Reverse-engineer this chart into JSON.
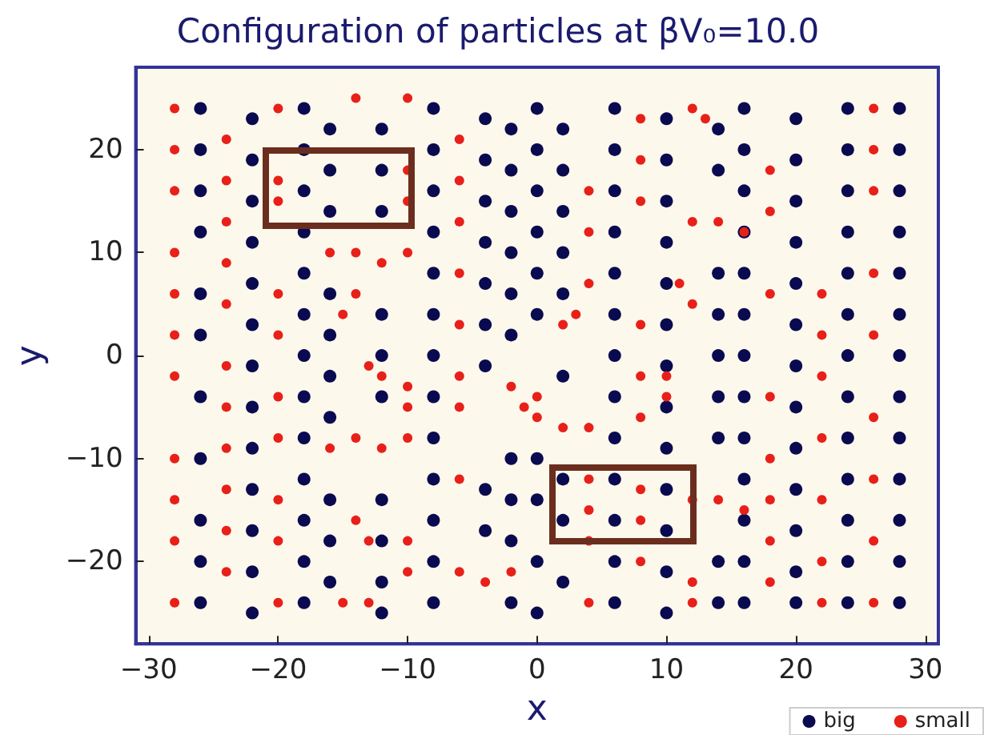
{
  "chart_data": {
    "type": "scatter",
    "title": "Configuration of particles at βV₀=10.0",
    "xlabel": "x",
    "ylabel": "y",
    "xlim": [
      -31,
      31
    ],
    "xticks": [
      -30,
      -20,
      -10,
      0,
      10,
      20,
      30
    ],
    "ylim": [
      -28,
      28
    ],
    "yticks": [
      -20,
      -10,
      0,
      10,
      20
    ],
    "grid": false,
    "legend": "bottom right",
    "marker": "circle",
    "series": [
      {
        "name": "big",
        "color": "#0a0a50",
        "x": [
          -26,
          -26,
          -26,
          -26,
          -26,
          -26,
          -26,
          -26,
          -26,
          -26,
          -26,
          -22,
          -22,
          -22,
          -22,
          -22,
          -22,
          -22,
          -22,
          -22,
          -22,
          -22,
          -22,
          -22,
          -18,
          -18,
          -18,
          -18,
          -18,
          -18,
          -18,
          -18,
          -18,
          -18,
          -18,
          -18,
          -18,
          -16,
          -16,
          -16,
          -16,
          -16,
          -16,
          -16,
          -16,
          -16,
          -16,
          -12,
          -12,
          -12,
          -12,
          -12,
          -12,
          -12,
          -12,
          -12,
          -12,
          -8,
          -8,
          -8,
          -8,
          -8,
          -8,
          -8,
          -8,
          -8,
          -8,
          -8,
          -8,
          -8,
          -4,
          -4,
          -4,
          -4,
          -4,
          -4,
          -4,
          -4,
          -4,
          -2,
          -2,
          -2,
          -2,
          -2,
          -2,
          -2,
          -2,
          -2,
          -2,
          0,
          0,
          0,
          0,
          0,
          0,
          0,
          0,
          0,
          0,
          2,
          2,
          2,
          2,
          2,
          2,
          2,
          2,
          2,
          6,
          6,
          6,
          6,
          6,
          6,
          6,
          6,
          6,
          6,
          6,
          6,
          6,
          10,
          10,
          10,
          10,
          10,
          10,
          10,
          10,
          10,
          10,
          10,
          10,
          10,
          14,
          14,
          14,
          14,
          14,
          14,
          14,
          14,
          14,
          16,
          16,
          16,
          16,
          16,
          16,
          16,
          16,
          16,
          16,
          16,
          16,
          16,
          20,
          20,
          20,
          20,
          20,
          20,
          20,
          20,
          20,
          20,
          20,
          20,
          20,
          24,
          24,
          24,
          24,
          24,
          24,
          24,
          24,
          24,
          24,
          24,
          24,
          24,
          28,
          28,
          28,
          28,
          28,
          28,
          28,
          28,
          28,
          28,
          28,
          28,
          28
        ],
        "values": [
          24,
          20,
          16,
          12,
          6,
          2,
          -4,
          -10,
          -16,
          -20,
          -24,
          23,
          19,
          15,
          11,
          7,
          3,
          -1,
          -5,
          -9,
          -13,
          -17,
          -21,
          -25,
          24,
          20,
          16,
          12,
          8,
          4,
          0,
          -4,
          -8,
          -12,
          -16,
          -20,
          -24,
          22,
          18,
          14,
          6,
          2,
          -2,
          -6,
          -14,
          -18,
          -22,
          22,
          18,
          14,
          4,
          0,
          -4,
          -14,
          -18,
          -22,
          -25,
          24,
          20,
          16,
          12,
          8,
          4,
          0,
          -4,
          -8,
          -12,
          -16,
          -20,
          -24,
          23,
          19,
          15,
          11,
          7,
          3,
          -1,
          -13,
          -17,
          22,
          18,
          14,
          10,
          6,
          2,
          -10,
          -14,
          -18,
          -24,
          24,
          20,
          16,
          12,
          8,
          4,
          -10,
          -14,
          -20,
          -25,
          22,
          18,
          14,
          10,
          6,
          -2,
          -12,
          -16,
          -22,
          24,
          20,
          16,
          12,
          8,
          4,
          0,
          -4,
          -8,
          -12,
          -16,
          -20,
          -24,
          23,
          19,
          15,
          11,
          7,
          3,
          -1,
          -5,
          -9,
          -13,
          -17,
          -21,
          -25,
          22,
          18,
          8,
          4,
          0,
          -4,
          -8,
          -20,
          -24,
          24,
          20,
          16,
          12,
          8,
          4,
          0,
          -4,
          -8,
          -12,
          -16,
          -20,
          -24,
          23,
          19,
          15,
          11,
          7,
          3,
          -1,
          -5,
          -9,
          -13,
          -17,
          -21,
          -24,
          24,
          20,
          16,
          12,
          8,
          4,
          0,
          -4,
          -8,
          -12,
          -16,
          -20,
          -24,
          24,
          20,
          16,
          12,
          8,
          4,
          0,
          -4,
          -8,
          -12,
          -16,
          -20,
          -24
        ]
      },
      {
        "name": "small",
        "color": "#e8201a",
        "x": [
          -28,
          -28,
          -28,
          -28,
          -28,
          -28,
          -28,
          -28,
          -28,
          -28,
          -28,
          -24,
          -24,
          -24,
          -24,
          -24,
          -24,
          -24,
          -24,
          -24,
          -24,
          -24,
          -20,
          -20,
          -20,
          -20,
          -20,
          -20,
          -20,
          -20,
          -20,
          -20,
          -14,
          -16,
          -14,
          -12,
          -10,
          -15,
          -14,
          -13,
          -12,
          -16,
          -14,
          -12,
          -10,
          -14,
          -13,
          -15,
          -13,
          -10,
          -10,
          -10,
          -10,
          -10,
          -10,
          -10,
          -6,
          -6,
          -6,
          -6,
          -6,
          -6,
          -6,
          -6,
          -6,
          -4,
          -2,
          -2,
          -1,
          0,
          2,
          4,
          0,
          2,
          3,
          4,
          4,
          4,
          4,
          4,
          4,
          4,
          8,
          8,
          8,
          8,
          8,
          8,
          8,
          8,
          8,
          12,
          13,
          12,
          14,
          16,
          11,
          12,
          10,
          10,
          12,
          14,
          16,
          12,
          12,
          18,
          18,
          18,
          18,
          18,
          18,
          18,
          18,
          22,
          22,
          22,
          22,
          22,
          22,
          22,
          26,
          26,
          26,
          26,
          26,
          26,
          26,
          26,
          26
        ],
        "values": [
          24,
          20,
          16,
          10,
          6,
          2,
          -2,
          -10,
          -14,
          -18,
          -24,
          21,
          17,
          13,
          9,
          5,
          -1,
          -5,
          -9,
          -13,
          -17,
          -21,
          24,
          17,
          15,
          6,
          2,
          -4,
          -8,
          -14,
          -18,
          -24,
          25,
          10,
          10,
          9,
          10,
          4,
          6,
          -1,
          -2,
          -9,
          -8,
          -9,
          -8,
          -16,
          -18,
          -24,
          -24,
          25,
          18,
          15,
          -3,
          -5,
          -18,
          -21,
          21,
          17,
          13,
          8,
          3,
          -2,
          -5,
          -12,
          -21,
          -22,
          -21,
          -3,
          -5,
          -6,
          -7,
          -7,
          -4,
          3,
          4,
          16,
          12,
          7,
          -12,
          -15,
          -18,
          -24,
          23,
          19,
          15,
          3,
          -2,
          -6,
          -13,
          -16,
          -20,
          24,
          23,
          13,
          13,
          12,
          7,
          5,
          -2,
          -4,
          -14,
          -14,
          -15,
          -22,
          -24,
          18,
          14,
          6,
          -4,
          -10,
          -14,
          -18,
          -22,
          6,
          2,
          -2,
          -8,
          -14,
          -20,
          -24,
          24,
          20,
          16,
          8,
          2,
          -6,
          -12,
          -18,
          -24
        ]
      }
    ]
  }
}
